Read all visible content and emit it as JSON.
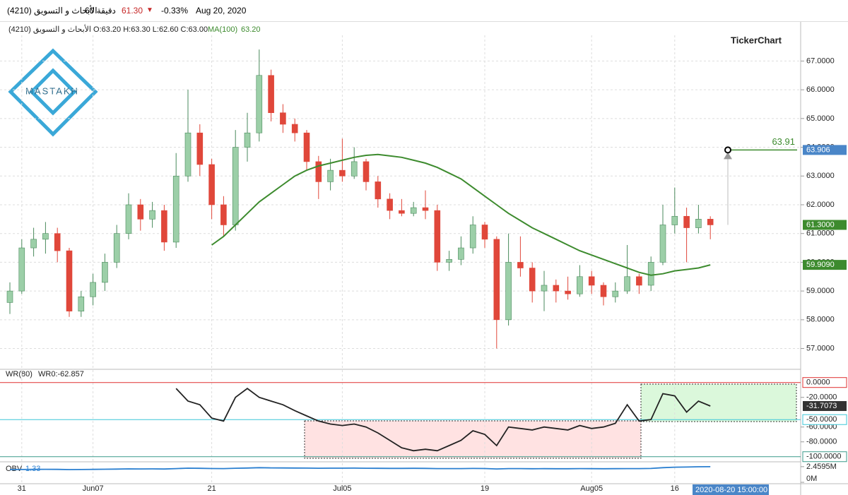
{
  "header": {
    "symbol": "الأبحاث و التسويق (4210)",
    "interval": "60 دقيقة",
    "price": "61.30",
    "change": "-0.33%",
    "date": "Aug 20, 2020",
    "ohlc": "الأبحاث و التسويق (4210) O:63.20 H:63.30 L:62.60 C:63.00",
    "brand": "TickerChart",
    "logo": "MASTAKH",
    "cursor_date": "2020-08-20 15:00:00"
  },
  "chart_data": [
    {
      "type": "candlestick",
      "categories": [
        null,
        "31",
        null,
        null,
        null,
        null,
        null,
        "Jun07",
        null,
        null,
        null,
        null,
        null,
        null,
        null,
        null,
        null,
        "21",
        null,
        null,
        null,
        null,
        null,
        null,
        null,
        null,
        null,
        null,
        "Jul05",
        null,
        null,
        null,
        null,
        null,
        null,
        null,
        null,
        null,
        null,
        null,
        "19",
        null,
        null,
        null,
        null,
        null,
        null,
        null,
        null,
        "Aug05",
        null,
        null,
        null,
        null,
        null,
        null,
        "16",
        null,
        null,
        null
      ],
      "open": [
        58.6,
        59.0,
        60.5,
        60.8,
        61.0,
        60.4,
        58.3,
        58.8,
        59.3,
        60.0,
        61.0,
        62.0,
        61.5,
        61.8,
        60.7,
        63.0,
        64.5,
        63.4,
        62.0,
        61.3,
        64.0,
        64.5,
        66.5,
        65.2,
        64.8,
        64.5,
        63.5,
        62.8,
        63.2,
        63.0,
        63.5,
        62.8,
        62.2,
        61.8,
        61.7,
        61.9,
        61.8,
        60.0,
        60.1,
        60.5,
        61.3,
        60.8,
        58.0,
        60.0,
        59.8,
        59.0,
        59.2,
        59.0,
        58.9,
        59.5,
        59.2,
        58.8,
        59.0,
        59.5,
        59.2,
        60.0,
        61.3,
        61.6,
        61.2,
        61.5
      ],
      "high": [
        59.3,
        60.8,
        61.2,
        61.4,
        61.2,
        60.5,
        59.0,
        59.6,
        60.3,
        61.3,
        62.4,
        62.2,
        62.1,
        62.0,
        63.8,
        66.0,
        64.8,
        63.6,
        62.3,
        64.6,
        65.2,
        67.4,
        66.7,
        65.5,
        65.0,
        64.6,
        63.7,
        63.6,
        64.3,
        64.0,
        63.6,
        63.0,
        62.4,
        62.2,
        62.1,
        62.5,
        62.0,
        60.4,
        60.9,
        61.6,
        61.4,
        60.9,
        61.0,
        60.9,
        60.0,
        59.7,
        59.4,
        59.5,
        59.9,
        59.7,
        59.3,
        59.3,
        60.6,
        59.6,
        60.2,
        62.0,
        62.6,
        61.9,
        62.0,
        61.6
      ],
      "low": [
        58.2,
        58.9,
        60.2,
        60.3,
        60.0,
        58.1,
        58.1,
        58.5,
        59.0,
        59.8,
        60.8,
        61.1,
        61.2,
        60.4,
        60.5,
        62.8,
        63.0,
        61.5,
        60.9,
        61.1,
        63.5,
        64.2,
        64.9,
        64.5,
        64.2,
        63.2,
        62.2,
        62.5,
        62.8,
        62.9,
        62.5,
        61.9,
        61.5,
        61.6,
        61.6,
        61.5,
        59.7,
        59.7,
        59.9,
        60.3,
        60.5,
        57.0,
        57.8,
        59.5,
        58.6,
        58.3,
        58.6,
        58.7,
        58.8,
        58.9,
        58.5,
        58.6,
        58.9,
        58.9,
        59.0,
        59.9,
        61.0,
        60.0,
        61.0,
        60.8
      ],
      "close": [
        59.0,
        60.5,
        60.8,
        61.0,
        60.4,
        58.3,
        58.8,
        59.3,
        60.0,
        61.0,
        62.0,
        61.5,
        61.8,
        60.7,
        63.0,
        64.5,
        63.4,
        62.0,
        61.3,
        64.0,
        64.5,
        66.5,
        65.2,
        64.8,
        64.5,
        63.5,
        62.8,
        63.2,
        63.0,
        63.5,
        62.8,
        62.2,
        61.8,
        61.7,
        61.9,
        61.8,
        60.0,
        60.1,
        60.5,
        61.3,
        60.8,
        58.0,
        60.0,
        59.8,
        59.0,
        59.2,
        59.0,
        58.9,
        59.5,
        59.2,
        58.8,
        59.0,
        59.5,
        59.2,
        60.0,
        61.3,
        61.6,
        61.2,
        61.5,
        61.3
      ],
      "last_label": "61.3000",
      "up_color": "#9ccfa8",
      "down_color": "#e0473a",
      "series": [
        {
          "name": "MA(100)",
          "color": "#3d8b2e",
          "readout": "63.20",
          "last_label": "59.9090",
          "values": [
            null,
            null,
            null,
            null,
            null,
            null,
            null,
            null,
            null,
            null,
            null,
            null,
            null,
            null,
            null,
            null,
            null,
            60.6,
            60.9,
            61.3,
            61.7,
            62.1,
            62.4,
            62.7,
            63.0,
            63.2,
            63.35,
            63.45,
            63.55,
            63.65,
            63.72,
            63.75,
            63.7,
            63.65,
            63.55,
            63.45,
            63.3,
            63.1,
            62.9,
            62.6,
            62.3,
            62.0,
            61.7,
            61.45,
            61.2,
            61.0,
            60.8,
            60.6,
            60.4,
            60.25,
            60.1,
            59.95,
            59.8,
            59.65,
            59.55,
            59.6,
            59.7,
            59.75,
            59.8,
            59.909
          ]
        }
      ],
      "target": {
        "value": 63.906,
        "label": "63.906",
        "annotation": "63.91"
      },
      "ylim": [
        56.35,
        67.6
      ],
      "yticks": [
        {
          "value": 57,
          "label": "57.0000"
        },
        {
          "value": 58,
          "label": "58.0000"
        },
        {
          "value": 59,
          "label": "59.0000"
        },
        {
          "value": 60,
          "label": "60.0000"
        },
        {
          "value": 61,
          "label": "61.0000"
        },
        {
          "value": 62,
          "label": "62.0000"
        },
        {
          "value": 63,
          "label": "63.0000"
        },
        {
          "value": 64,
          "label": "64.0000"
        },
        {
          "value": 65,
          "label": "65.0000"
        },
        {
          "value": 66,
          "label": "66.0000"
        },
        {
          "value": 67,
          "label": "67.0000"
        }
      ],
      "grid": true
    },
    {
      "type": "line",
      "readout": "WR0:-62.857",
      "series": [
        {
          "name": "WR(80)",
          "color": "#222222",
          "last_label": "-31.7073",
          "values": [
            null,
            null,
            null,
            null,
            null,
            null,
            null,
            null,
            null,
            null,
            null,
            null,
            null,
            null,
            -8,
            -25,
            -30,
            -48,
            -52,
            -20,
            -8,
            -20,
            -25,
            -30,
            -38,
            -45,
            -52,
            -56,
            -58,
            -56,
            -60,
            -68,
            -78,
            -88,
            -92,
            -90,
            -92,
            -85,
            -78,
            -65,
            -70,
            -85,
            -60,
            -62,
            -64,
            -60,
            -62,
            -64,
            -58,
            -62,
            -60,
            -55,
            -30,
            -52,
            -50,
            -15,
            -18,
            -40,
            -25,
            -31.7073
          ]
        }
      ],
      "levels": [
        {
          "value": 0,
          "label": "0.0000",
          "color": "#e03030"
        },
        {
          "value": -50,
          "label": "-50.0000",
          "color": "#3cc6d8"
        },
        {
          "value": -100,
          "label": "-100.0000",
          "color": "#3a9a8a"
        }
      ],
      "ylim": [
        -105,
        14
      ],
      "yticks": [
        {
          "value": -20,
          "label": "-20.0000"
        },
        {
          "value": -60,
          "label": "-60.0000"
        },
        {
          "value": -80,
          "label": "-80.0000"
        }
      ]
    },
    {
      "type": "line",
      "readout": "1.33",
      "series": [
        {
          "name": "OBV",
          "color": "#2a7fd0",
          "values": [
            2000000,
            2010000,
            2030000,
            2040000,
            2030000,
            2000000,
            2010000,
            2030000,
            2050000,
            2080000,
            2110000,
            2100000,
            2110000,
            2090000,
            2150000,
            2220000,
            2200000,
            2170000,
            2150000,
            2210000,
            2240000,
            2300000,
            2270000,
            2260000,
            2250000,
            2230000,
            2210000,
            2220000,
            2220000,
            2230000,
            2210000,
            2200000,
            2190000,
            2190000,
            2200000,
            2190000,
            2150000,
            2150000,
            2160000,
            2180000,
            2170000,
            2100000,
            2150000,
            2150000,
            2130000,
            2140000,
            2130000,
            2130000,
            2150000,
            2140000,
            2130000,
            2140000,
            2160000,
            2150000,
            2180000,
            2300000,
            2380000,
            2400000,
            2450000,
            2459500
          ]
        }
      ],
      "ylim": [
        0,
        3000000
      ],
      "yticks": [
        {
          "value": 0,
          "label": "0M"
        },
        {
          "value": 2459500,
          "label": "2.4595M"
        }
      ]
    }
  ]
}
